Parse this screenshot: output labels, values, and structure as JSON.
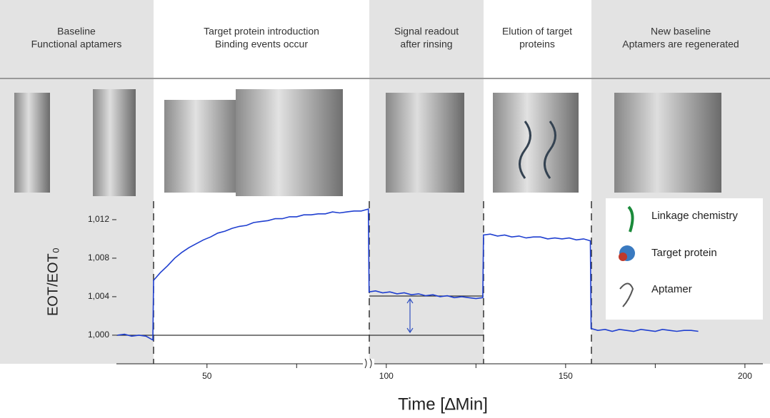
{
  "panels": [
    {
      "lines": [
        "Baseline",
        "Functional aptamers"
      ]
    },
    {
      "lines": [
        "Target protein introduction",
        "Binding events occur"
      ]
    },
    {
      "lines": [
        "Signal readout",
        "after rinsing"
      ]
    },
    {
      "lines": [
        "Elution of target",
        "proteins"
      ]
    },
    {
      "lines": [
        "New baseline",
        "Aptamers are regenerated"
      ]
    }
  ],
  "legend": [
    "Linkage chemistry",
    "Target protein",
    "Aptamer"
  ],
  "chart_data": {
    "type": "line",
    "x_label": "Time [∆Min]",
    "y_label": "EOT/EOT₀",
    "xlim": [
      24.75,
      205
    ],
    "xticks": [
      50,
      100,
      150,
      200
    ],
    "xminorticks": [
      75,
      125,
      175
    ],
    "ylim": [
      0.99703,
      1.0137
    ],
    "yticks": [
      {
        "value": 1.0,
        "label": "1,000"
      },
      {
        "value": 1.004,
        "label": "1,004"
      },
      {
        "value": 1.008,
        "label": "1,008"
      },
      {
        "value": 1.012,
        "label": "1,012"
      }
    ],
    "x": [
      25,
      27,
      29,
      31,
      33,
      34.9,
      35.1,
      37,
      39,
      41,
      43,
      45,
      47,
      49,
      51,
      53,
      55,
      57,
      59,
      61,
      63,
      65,
      67,
      69,
      71,
      73,
      75,
      77,
      79,
      81,
      83,
      85,
      87,
      89,
      91,
      93,
      95,
      95.2,
      97,
      99,
      101,
      103,
      105,
      107,
      109,
      111,
      113,
      115,
      117,
      119,
      121,
      123,
      125,
      126.9,
      127.1,
      129,
      131,
      133,
      135,
      137,
      139,
      141,
      143,
      145,
      147,
      149,
      151,
      153,
      155,
      156.9,
      157.1,
      159,
      161,
      163,
      165,
      167,
      169,
      171,
      173,
      175,
      177,
      179,
      181,
      183,
      185,
      187
    ],
    "series": [
      {
        "color": "#1f3fd0",
        "values": [
          1.0,
          1.0001,
          0.9999,
          1.0,
          0.9999,
          0.9995,
          1.0057,
          1.0065,
          1.0072,
          1.008,
          1.0086,
          1.0091,
          1.0095,
          1.0099,
          1.0102,
          1.0106,
          1.0108,
          1.0111,
          1.0113,
          1.0114,
          1.0117,
          1.0118,
          1.0119,
          1.0121,
          1.0121,
          1.0123,
          1.0123,
          1.0125,
          1.0125,
          1.0126,
          1.0126,
          1.0128,
          1.0127,
          1.0128,
          1.0129,
          1.0129,
          1.0131,
          1.0045,
          1.0046,
          1.0044,
          1.0045,
          1.0043,
          1.0044,
          1.0042,
          1.0043,
          1.0041,
          1.0042,
          1.004,
          1.0041,
          1.0039,
          1.004,
          1.0039,
          1.0038,
          1.0039,
          1.0104,
          1.0105,
          1.0103,
          1.0104,
          1.0102,
          1.0103,
          1.0101,
          1.0102,
          1.0102,
          1.01,
          1.0101,
          1.01,
          1.0101,
          1.0099,
          1.01,
          1.0098,
          1.0007,
          1.0005,
          1.0006,
          1.0004,
          1.0006,
          1.0005,
          1.0004,
          1.0006,
          1.0005,
          1.0004,
          1.0006,
          1.0005,
          1.0004,
          1.0005,
          1.0005,
          1.0004
        ]
      }
    ]
  }
}
